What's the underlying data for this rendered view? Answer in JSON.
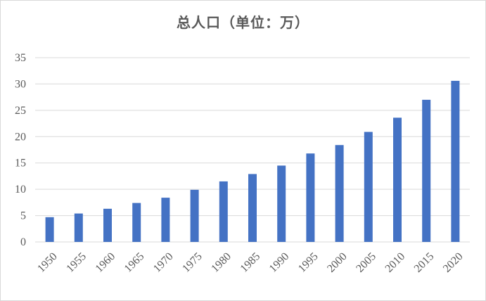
{
  "chart_data": {
    "type": "bar",
    "title": "总人口（单位：万）",
    "categories": [
      "1950",
      "1955",
      "1960",
      "1965",
      "1970",
      "1975",
      "1980",
      "1985",
      "1990",
      "1995",
      "2000",
      "2005",
      "2010",
      "2015",
      "2020"
    ],
    "values": [
      4.7,
      5.4,
      6.3,
      7.4,
      8.4,
      9.9,
      11.5,
      12.9,
      14.5,
      16.8,
      18.4,
      20.9,
      23.6,
      27.0,
      30.6
    ],
    "ylim": [
      0,
      35
    ],
    "yticks": [
      0,
      5,
      10,
      15,
      20,
      25,
      30,
      35
    ],
    "grid": true,
    "bar_color": "#4472c4",
    "grid_color": "#d9d9d9"
  }
}
